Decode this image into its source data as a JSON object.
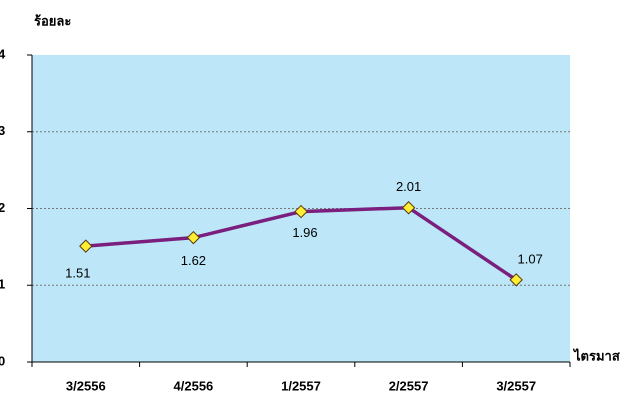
{
  "chart_data": {
    "type": "line",
    "ylabel": "ร้อยละ",
    "xlabel": "ไตรมาส",
    "categories": [
      "3/2556",
      "4/2556",
      "1/2557",
      "2/2557",
      "3/2557"
    ],
    "series": [
      {
        "name": "ร้อยละ",
        "color": "#7b1f7e",
        "marker_color": "#ffee33",
        "values": [
          1.51,
          1.62,
          1.96,
          2.01,
          1.07
        ]
      }
    ],
    "ylim": [
      0,
      4
    ],
    "yticks": [
      0,
      1,
      2,
      3,
      4
    ],
    "grid": true,
    "background": "#bde7f8"
  }
}
